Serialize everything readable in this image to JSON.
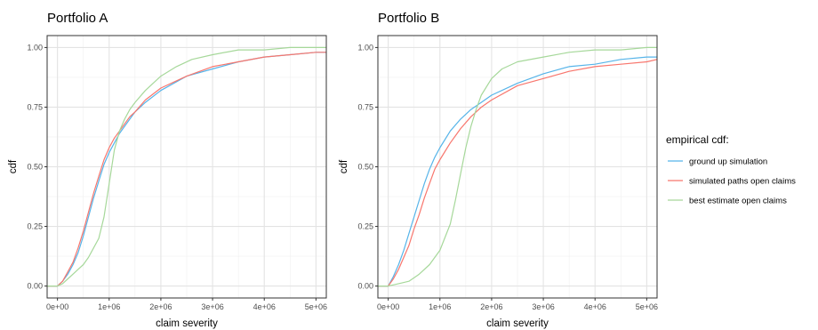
{
  "chart_data": [
    {
      "type": "line",
      "title": "Portfolio A",
      "xlabel": "claim severity",
      "ylabel": "cdf",
      "xlim": [
        -200000,
        5200000
      ],
      "ylim": [
        -0.05,
        1.05
      ],
      "x_ticks": [
        0,
        1000000,
        2000000,
        3000000,
        4000000,
        5000000
      ],
      "x_tick_labels": [
        "0e+00",
        "1e+06",
        "2e+06",
        "3e+06",
        "4e+06",
        "5e+06"
      ],
      "y_ticks": [
        0,
        0.25,
        0.5,
        0.75,
        1
      ],
      "y_tick_labels": [
        "0.00",
        "0.25",
        "0.50",
        "0.75",
        "1.00"
      ],
      "grid": true,
      "series": [
        {
          "name": "ground up simulation",
          "color": "#56B4E9",
          "x": [
            -200000,
            0,
            100000,
            200000,
            300000,
            400000,
            500000,
            600000,
            700000,
            800000,
            900000,
            1000000,
            1100000,
            1200000,
            1300000,
            1400000,
            1500000,
            1700000,
            2000000,
            2500000,
            3000000,
            3500000,
            4000000,
            4500000,
            5000000,
            5200000
          ],
          "y": [
            0,
            0,
            0.02,
            0.05,
            0.09,
            0.14,
            0.21,
            0.29,
            0.37,
            0.44,
            0.51,
            0.56,
            0.6,
            0.64,
            0.67,
            0.7,
            0.73,
            0.77,
            0.82,
            0.88,
            0.91,
            0.94,
            0.96,
            0.97,
            0.98,
            0.98
          ]
        },
        {
          "name": "simulated paths open claims",
          "color": "#F8766D",
          "x": [
            -200000,
            0,
            100000,
            200000,
            300000,
            400000,
            500000,
            600000,
            700000,
            800000,
            900000,
            1000000,
            1100000,
            1200000,
            1300000,
            1400000,
            1500000,
            1700000,
            2000000,
            2500000,
            3000000,
            3500000,
            4000000,
            4500000,
            5000000,
            5200000
          ],
          "y": [
            0,
            0,
            0.02,
            0.06,
            0.1,
            0.16,
            0.23,
            0.31,
            0.39,
            0.46,
            0.53,
            0.58,
            0.62,
            0.65,
            0.68,
            0.71,
            0.73,
            0.78,
            0.83,
            0.88,
            0.92,
            0.94,
            0.96,
            0.97,
            0.98,
            0.98
          ]
        },
        {
          "name": "best estimate open claims",
          "color": "#A6D89A",
          "x": [
            -200000,
            0,
            100000,
            200000,
            300000,
            400000,
            500000,
            600000,
            700000,
            800000,
            900000,
            1000000,
            1100000,
            1200000,
            1300000,
            1400000,
            1500000,
            1700000,
            2000000,
            2300000,
            2600000,
            3000000,
            3500000,
            4000000,
            4500000,
            5000000,
            5200000
          ],
          "y": [
            0,
            0,
            0.01,
            0.03,
            0.05,
            0.07,
            0.09,
            0.12,
            0.16,
            0.2,
            0.29,
            0.43,
            0.57,
            0.65,
            0.7,
            0.74,
            0.77,
            0.82,
            0.88,
            0.92,
            0.95,
            0.97,
            0.99,
            0.99,
            1.0,
            1.0,
            1.0
          ]
        }
      ]
    },
    {
      "type": "line",
      "title": "Portfolio B",
      "xlabel": "claim severity",
      "ylabel": "cdf",
      "xlim": [
        -200000,
        5200000
      ],
      "ylim": [
        -0.05,
        1.05
      ],
      "x_ticks": [
        0,
        1000000,
        2000000,
        3000000,
        4000000,
        5000000
      ],
      "x_tick_labels": [
        "0e+00",
        "1e+06",
        "2e+06",
        "3e+06",
        "4e+06",
        "5e+06"
      ],
      "y_ticks": [
        0,
        0.25,
        0.5,
        0.75,
        1
      ],
      "y_tick_labels": [
        "0.00",
        "0.25",
        "0.50",
        "0.75",
        "1.00"
      ],
      "grid": true,
      "series": [
        {
          "name": "ground up simulation",
          "color": "#56B4E9",
          "x": [
            -200000,
            0,
            100000,
            200000,
            300000,
            400000,
            500000,
            600000,
            700000,
            800000,
            900000,
            1000000,
            1200000,
            1400000,
            1600000,
            1800000,
            2000000,
            2500000,
            3000000,
            3500000,
            4000000,
            4500000,
            5000000,
            5200000
          ],
          "y": [
            0,
            0,
            0.04,
            0.09,
            0.15,
            0.22,
            0.29,
            0.36,
            0.43,
            0.49,
            0.54,
            0.58,
            0.65,
            0.7,
            0.74,
            0.77,
            0.8,
            0.85,
            0.89,
            0.92,
            0.93,
            0.95,
            0.96,
            0.96
          ]
        },
        {
          "name": "simulated paths open claims",
          "color": "#F8766D",
          "x": [
            -200000,
            0,
            100000,
            200000,
            300000,
            400000,
            500000,
            600000,
            700000,
            800000,
            900000,
            1000000,
            1200000,
            1400000,
            1600000,
            1800000,
            2000000,
            2500000,
            3000000,
            3500000,
            4000000,
            4500000,
            5000000,
            5200000
          ],
          "y": [
            0,
            0,
            0.03,
            0.07,
            0.12,
            0.17,
            0.24,
            0.3,
            0.37,
            0.43,
            0.49,
            0.53,
            0.6,
            0.66,
            0.71,
            0.75,
            0.78,
            0.84,
            0.87,
            0.9,
            0.92,
            0.93,
            0.94,
            0.95
          ]
        },
        {
          "name": "best estimate open claims",
          "color": "#A6D89A",
          "x": [
            -200000,
            0,
            200000,
            400000,
            600000,
            800000,
            1000000,
            1200000,
            1300000,
            1400000,
            1500000,
            1600000,
            1700000,
            1800000,
            2000000,
            2200000,
            2500000,
            3000000,
            3500000,
            4000000,
            4500000,
            5000000,
            5200000
          ],
          "y": [
            0,
            0,
            0.01,
            0.02,
            0.05,
            0.09,
            0.15,
            0.26,
            0.36,
            0.47,
            0.58,
            0.67,
            0.74,
            0.8,
            0.87,
            0.91,
            0.94,
            0.96,
            0.98,
            0.99,
            0.99,
            1.0,
            1.0
          ]
        }
      ]
    }
  ],
  "legend": {
    "title": "empirical cdf:",
    "placement": "right",
    "items": [
      {
        "label": "ground up simulation",
        "color": "#56B4E9"
      },
      {
        "label": "simulated paths open claims",
        "color": "#F8766D"
      },
      {
        "label": "best estimate open claims",
        "color": "#A6D89A"
      }
    ]
  }
}
